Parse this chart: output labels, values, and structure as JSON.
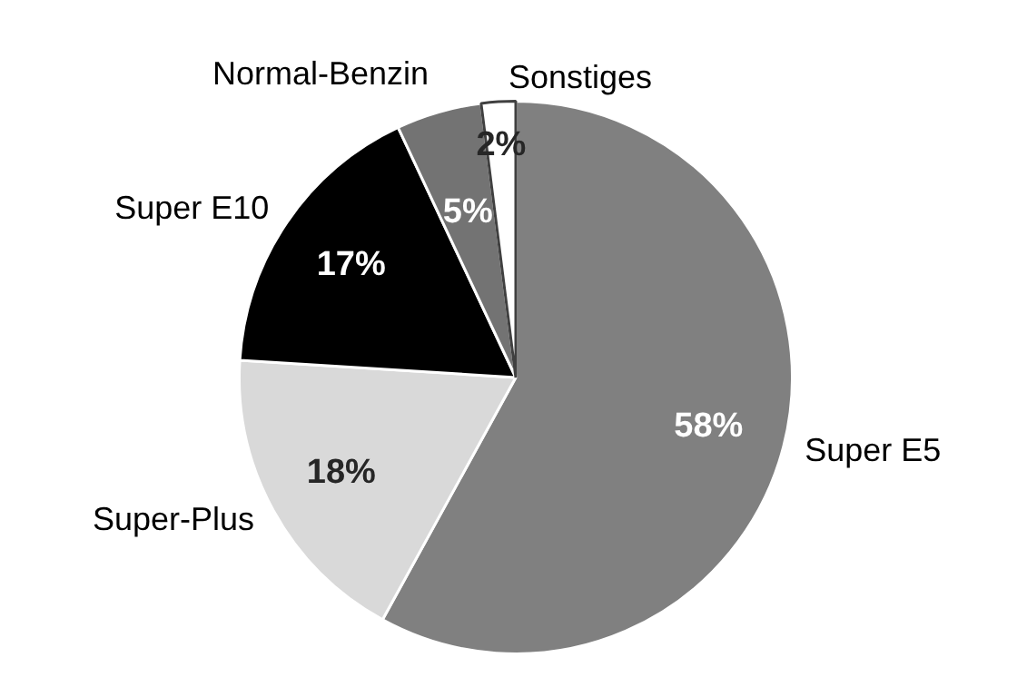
{
  "chart_data": {
    "type": "pie",
    "categories": [
      "Super E5",
      "Super-Plus",
      "Super E10",
      "Normal-Benzin",
      "Sonstiges"
    ],
    "values": [
      58,
      18,
      17,
      5,
      2
    ],
    "value_labels": [
      "58%",
      "18%",
      "17%",
      "5%",
      "2%"
    ],
    "colors": [
      "#808080",
      "#d9d9d9",
      "#000000",
      "#737373",
      "#ffffff"
    ],
    "legend": false
  }
}
